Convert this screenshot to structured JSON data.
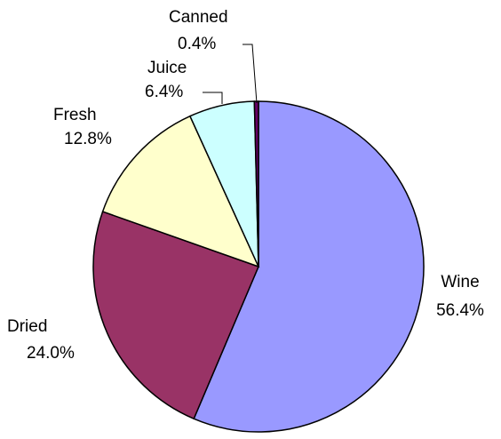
{
  "chart_data": {
    "type": "pie",
    "categories": [
      "Wine",
      "Dried",
      "Fresh",
      "Juice",
      "Canned"
    ],
    "values": [
      56.4,
      24.0,
      12.8,
      6.4,
      0.4
    ],
    "value_labels": [
      "56.4%",
      "24.0%",
      "12.8%",
      "6.4%",
      "0.4%"
    ],
    "colors": [
      "#9999ff",
      "#993366",
      "#ffffcc",
      "#ccffff",
      "#660066"
    ]
  }
}
